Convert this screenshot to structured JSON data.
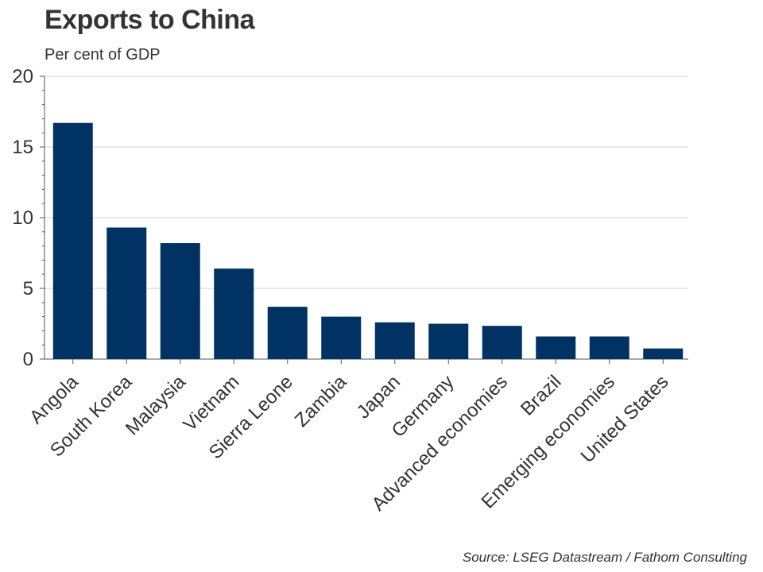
{
  "chart_data": {
    "type": "bar",
    "title": "Exports to China",
    "subtitle": "Per cent of GDP",
    "source": "Source: LSEG Datastream / Fathom Consulting",
    "xlabel": "",
    "ylabel": "",
    "ylim": [
      0,
      20
    ],
    "yticks": [
      "0",
      "5",
      "10",
      "15",
      "20"
    ],
    "grid": true,
    "legend": "none",
    "bar_color": "#003263",
    "categories": [
      "Angola",
      "South Korea",
      "Malaysia",
      "Vietnam",
      "Sierra Leone",
      "Zambia",
      "Japan",
      "Germany",
      "Advanced economies",
      "Brazil",
      "Emerging economies",
      "United States"
    ],
    "values": [
      16.7,
      9.3,
      8.2,
      6.4,
      3.7,
      3.0,
      2.6,
      2.5,
      2.35,
      1.6,
      1.6,
      0.75
    ]
  }
}
